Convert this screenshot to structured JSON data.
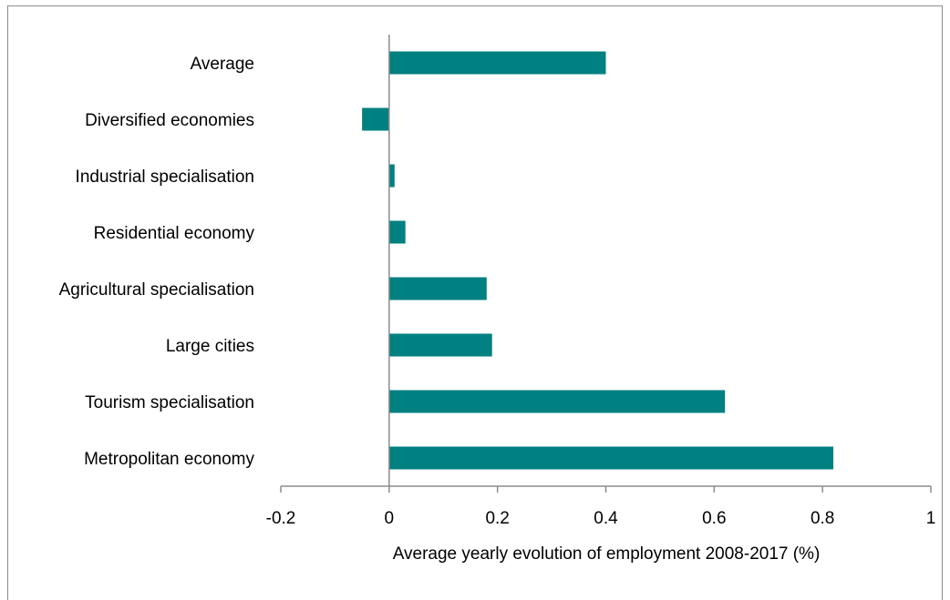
{
  "chart_data": {
    "type": "bar",
    "orientation": "horizontal",
    "categories": [
      "Average",
      "Diversified economies",
      "Industrial specialisation",
      "Residential economy",
      "Agricultural specialisation",
      "Large cities",
      "Tourism specialisation",
      "Metropolitan economy"
    ],
    "values": [
      0.4,
      -0.05,
      0.01,
      0.03,
      0.18,
      0.19,
      0.62,
      0.82
    ],
    "title": "",
    "xlabel": "Average yearly evolution of employment 2008-2017 (%)",
    "ylabel": "",
    "xlim": [
      -0.2,
      1.0
    ],
    "xticks": [
      -0.2,
      0,
      0.2,
      0.4,
      0.6,
      0.8,
      1.0
    ],
    "xtick_labels": [
      "-0.2",
      "0",
      "0.2",
      "0.4",
      "0.6",
      "0.8",
      "1"
    ],
    "grid": false,
    "legend": "none",
    "bar_color": "#008080",
    "axis_color": "#8c8c8c"
  }
}
